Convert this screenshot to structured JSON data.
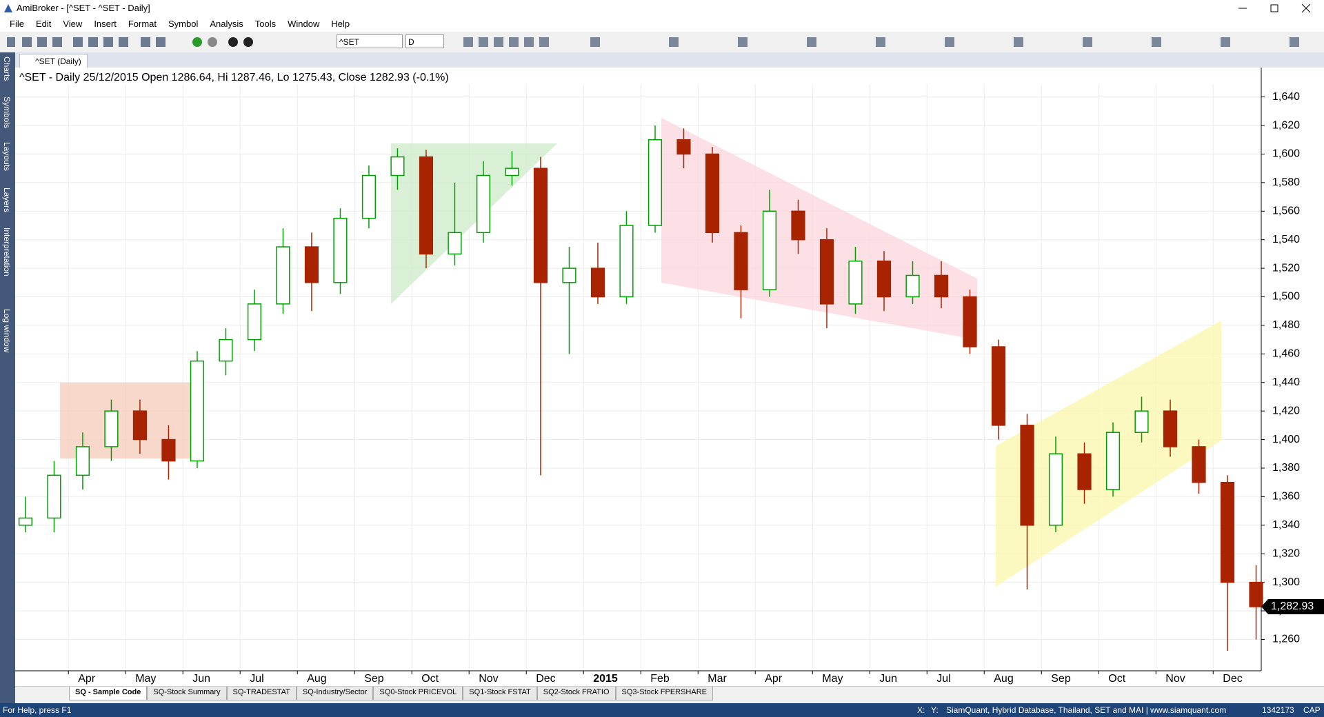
{
  "window": {
    "title": "AmiBroker - [^SET - ^SET - Daily]",
    "menu": [
      "File",
      "Edit",
      "View",
      "Insert",
      "Format",
      "Symbol",
      "Analysis",
      "Tools",
      "Window",
      "Help"
    ],
    "symbol": "^SET",
    "interval": "D",
    "chart_tab": "^SET (Daily)",
    "side_tabs": [
      "Charts",
      "Symbols",
      "Layouts",
      "Layers",
      "Interpretation",
      "Log window"
    ],
    "sheet_tabs": [
      "SQ - Sample Code",
      "SQ-Stock Summary",
      "SQ-TRADESTAT",
      "SQ-Industry/Sector",
      "SQ0-Stock PRICEVOL",
      "SQ1-Stock FSTAT",
      "SQ2-Stock FRATIO",
      "SQ3-Stock FPERSHARE"
    ],
    "status": {
      "help": "For Help, press F1",
      "x": "X:",
      "y": "Y:",
      "info": "SiamQuant, Hybrid Database, Thailand, SET and MAI | www.siamquant.com",
      "memory": "1342173",
      "cap": "CAP"
    }
  },
  "chart_data": {
    "type": "candlestick",
    "title": "^SET - Daily 25/12/2015 Open 1286.64, Hi 1287.46, Lo 1275.43, Close 1282.93 (-0.1%)",
    "up_color": "#00a000",
    "down_color": "#a82400",
    "grid": true,
    "xlim": [
      0.07,
      21.84
    ],
    "xticks": [
      {
        "value": 1,
        "label": "Apr"
      },
      {
        "value": 2,
        "label": "May"
      },
      {
        "value": 3,
        "label": "Jun"
      },
      {
        "value": 4,
        "label": "Jul"
      },
      {
        "value": 5,
        "label": "Aug"
      },
      {
        "value": 6,
        "label": "Sep"
      },
      {
        "value": 7,
        "label": "Oct"
      },
      {
        "value": 8,
        "label": "Nov"
      },
      {
        "value": 9,
        "label": "Dec"
      },
      {
        "value": 10,
        "label": "2015"
      },
      {
        "value": 11,
        "label": "Feb"
      },
      {
        "value": 12,
        "label": "Mar"
      },
      {
        "value": 13,
        "label": "Apr"
      },
      {
        "value": 14,
        "label": "May"
      },
      {
        "value": 15,
        "label": "Jun"
      },
      {
        "value": 16,
        "label": "Jul"
      },
      {
        "value": 17,
        "label": "Aug"
      },
      {
        "value": 18,
        "label": "Sep"
      },
      {
        "value": 19,
        "label": "Oct"
      },
      {
        "value": 20,
        "label": "Nov"
      },
      {
        "value": 21,
        "label": "Dec"
      }
    ],
    "ylim": [
      1238,
      1649
    ],
    "yticks": [
      {
        "value": 1260,
        "label": "1,260"
      },
      {
        "value": 1280,
        "label": "1,280"
      },
      {
        "value": 1300,
        "label": "1,300"
      },
      {
        "value": 1320,
        "label": "1,320"
      },
      {
        "value": 1340,
        "label": "1,340"
      },
      {
        "value": 1360,
        "label": "1,360"
      },
      {
        "value": 1380,
        "label": "1,380"
      },
      {
        "value": 1400,
        "label": "1,400"
      },
      {
        "value": 1420,
        "label": "1,420"
      },
      {
        "value": 1440,
        "label": "1,440"
      },
      {
        "value": 1460,
        "label": "1,460"
      },
      {
        "value": 1480,
        "label": "1,480"
      },
      {
        "value": 1500,
        "label": "1,500"
      },
      {
        "value": 1520,
        "label": "1,520"
      },
      {
        "value": 1540,
        "label": "1,540"
      },
      {
        "value": 1560,
        "label": "1,560"
      },
      {
        "value": 1580,
        "label": "1,580"
      },
      {
        "value": 1600,
        "label": "1,600"
      },
      {
        "value": 1620,
        "label": "1,620"
      },
      {
        "value": 1640,
        "label": "1,640"
      }
    ],
    "x": [
      0.25,
      0.75,
      1.25,
      1.75,
      2.25,
      2.75,
      3.25,
      3.75,
      4.25,
      4.75,
      5.25,
      5.75,
      6.25,
      6.75,
      7.25,
      7.75,
      8.25,
      8.75,
      9.25,
      9.75,
      10.25,
      10.75,
      11.25,
      11.75,
      12.25,
      12.75,
      13.25,
      13.75,
      14.25,
      14.75,
      15.25,
      15.75,
      16.25,
      16.75,
      17.25,
      17.75,
      18.25,
      18.75,
      19.25,
      19.75,
      20.25,
      20.75,
      21.25,
      21.75
    ],
    "series": [
      {
        "name": "^SET",
        "values": [
          [
            1340,
            1360,
            1335,
            1345
          ],
          [
            1345,
            1385,
            1335,
            1375
          ],
          [
            1375,
            1405,
            1365,
            1395
          ],
          [
            1395,
            1428,
            1385,
            1420
          ],
          [
            1420,
            1428,
            1390,
            1400
          ],
          [
            1400,
            1410,
            1372,
            1385
          ],
          [
            1385,
            1462,
            1380,
            1455
          ],
          [
            1455,
            1478,
            1445,
            1470
          ],
          [
            1470,
            1505,
            1462,
            1495
          ],
          [
            1495,
            1548,
            1488,
            1535
          ],
          [
            1535,
            1545,
            1490,
            1510
          ],
          [
            1510,
            1562,
            1502,
            1555
          ],
          [
            1555,
            1592,
            1548,
            1585
          ],
          [
            1585,
            1604,
            1575,
            1598
          ],
          [
            1598,
            1603,
            1520,
            1530
          ],
          [
            1530,
            1580,
            1522,
            1545
          ],
          [
            1545,
            1595,
            1538,
            1585
          ],
          [
            1585,
            1602,
            1578,
            1590
          ],
          [
            1590,
            1598,
            1375,
            1510
          ],
          [
            1510,
            1535,
            1460,
            1520
          ],
          [
            1520,
            1538,
            1495,
            1500
          ],
          [
            1500,
            1560,
            1495,
            1550
          ],
          [
            1550,
            1620,
            1545,
            1610
          ],
          [
            1610,
            1618,
            1590,
            1600
          ],
          [
            1600,
            1605,
            1538,
            1545
          ],
          [
            1545,
            1550,
            1485,
            1505
          ],
          [
            1505,
            1575,
            1500,
            1560
          ],
          [
            1560,
            1568,
            1530,
            1540
          ],
          [
            1540,
            1548,
            1478,
            1495
          ],
          [
            1495,
            1535,
            1488,
            1525
          ],
          [
            1525,
            1532,
            1490,
            1500
          ],
          [
            1500,
            1525,
            1495,
            1515
          ],
          [
            1515,
            1525,
            1492,
            1500
          ],
          [
            1500,
            1505,
            1460,
            1465
          ],
          [
            1465,
            1470,
            1400,
            1410
          ],
          [
            1410,
            1418,
            1295,
            1340
          ],
          [
            1340,
            1402,
            1335,
            1390
          ],
          [
            1390,
            1398,
            1355,
            1365
          ],
          [
            1365,
            1412,
            1360,
            1405
          ],
          [
            1405,
            1430,
            1398,
            1420
          ],
          [
            1420,
            1428,
            1388,
            1395
          ],
          [
            1395,
            1400,
            1362,
            1370
          ],
          [
            1370,
            1375,
            1252,
            1300
          ],
          [
            1300,
            1312,
            1260,
            1282.93
          ]
        ]
      }
    ],
    "last_value": 1282.93,
    "last_label": "1,282.93"
  }
}
